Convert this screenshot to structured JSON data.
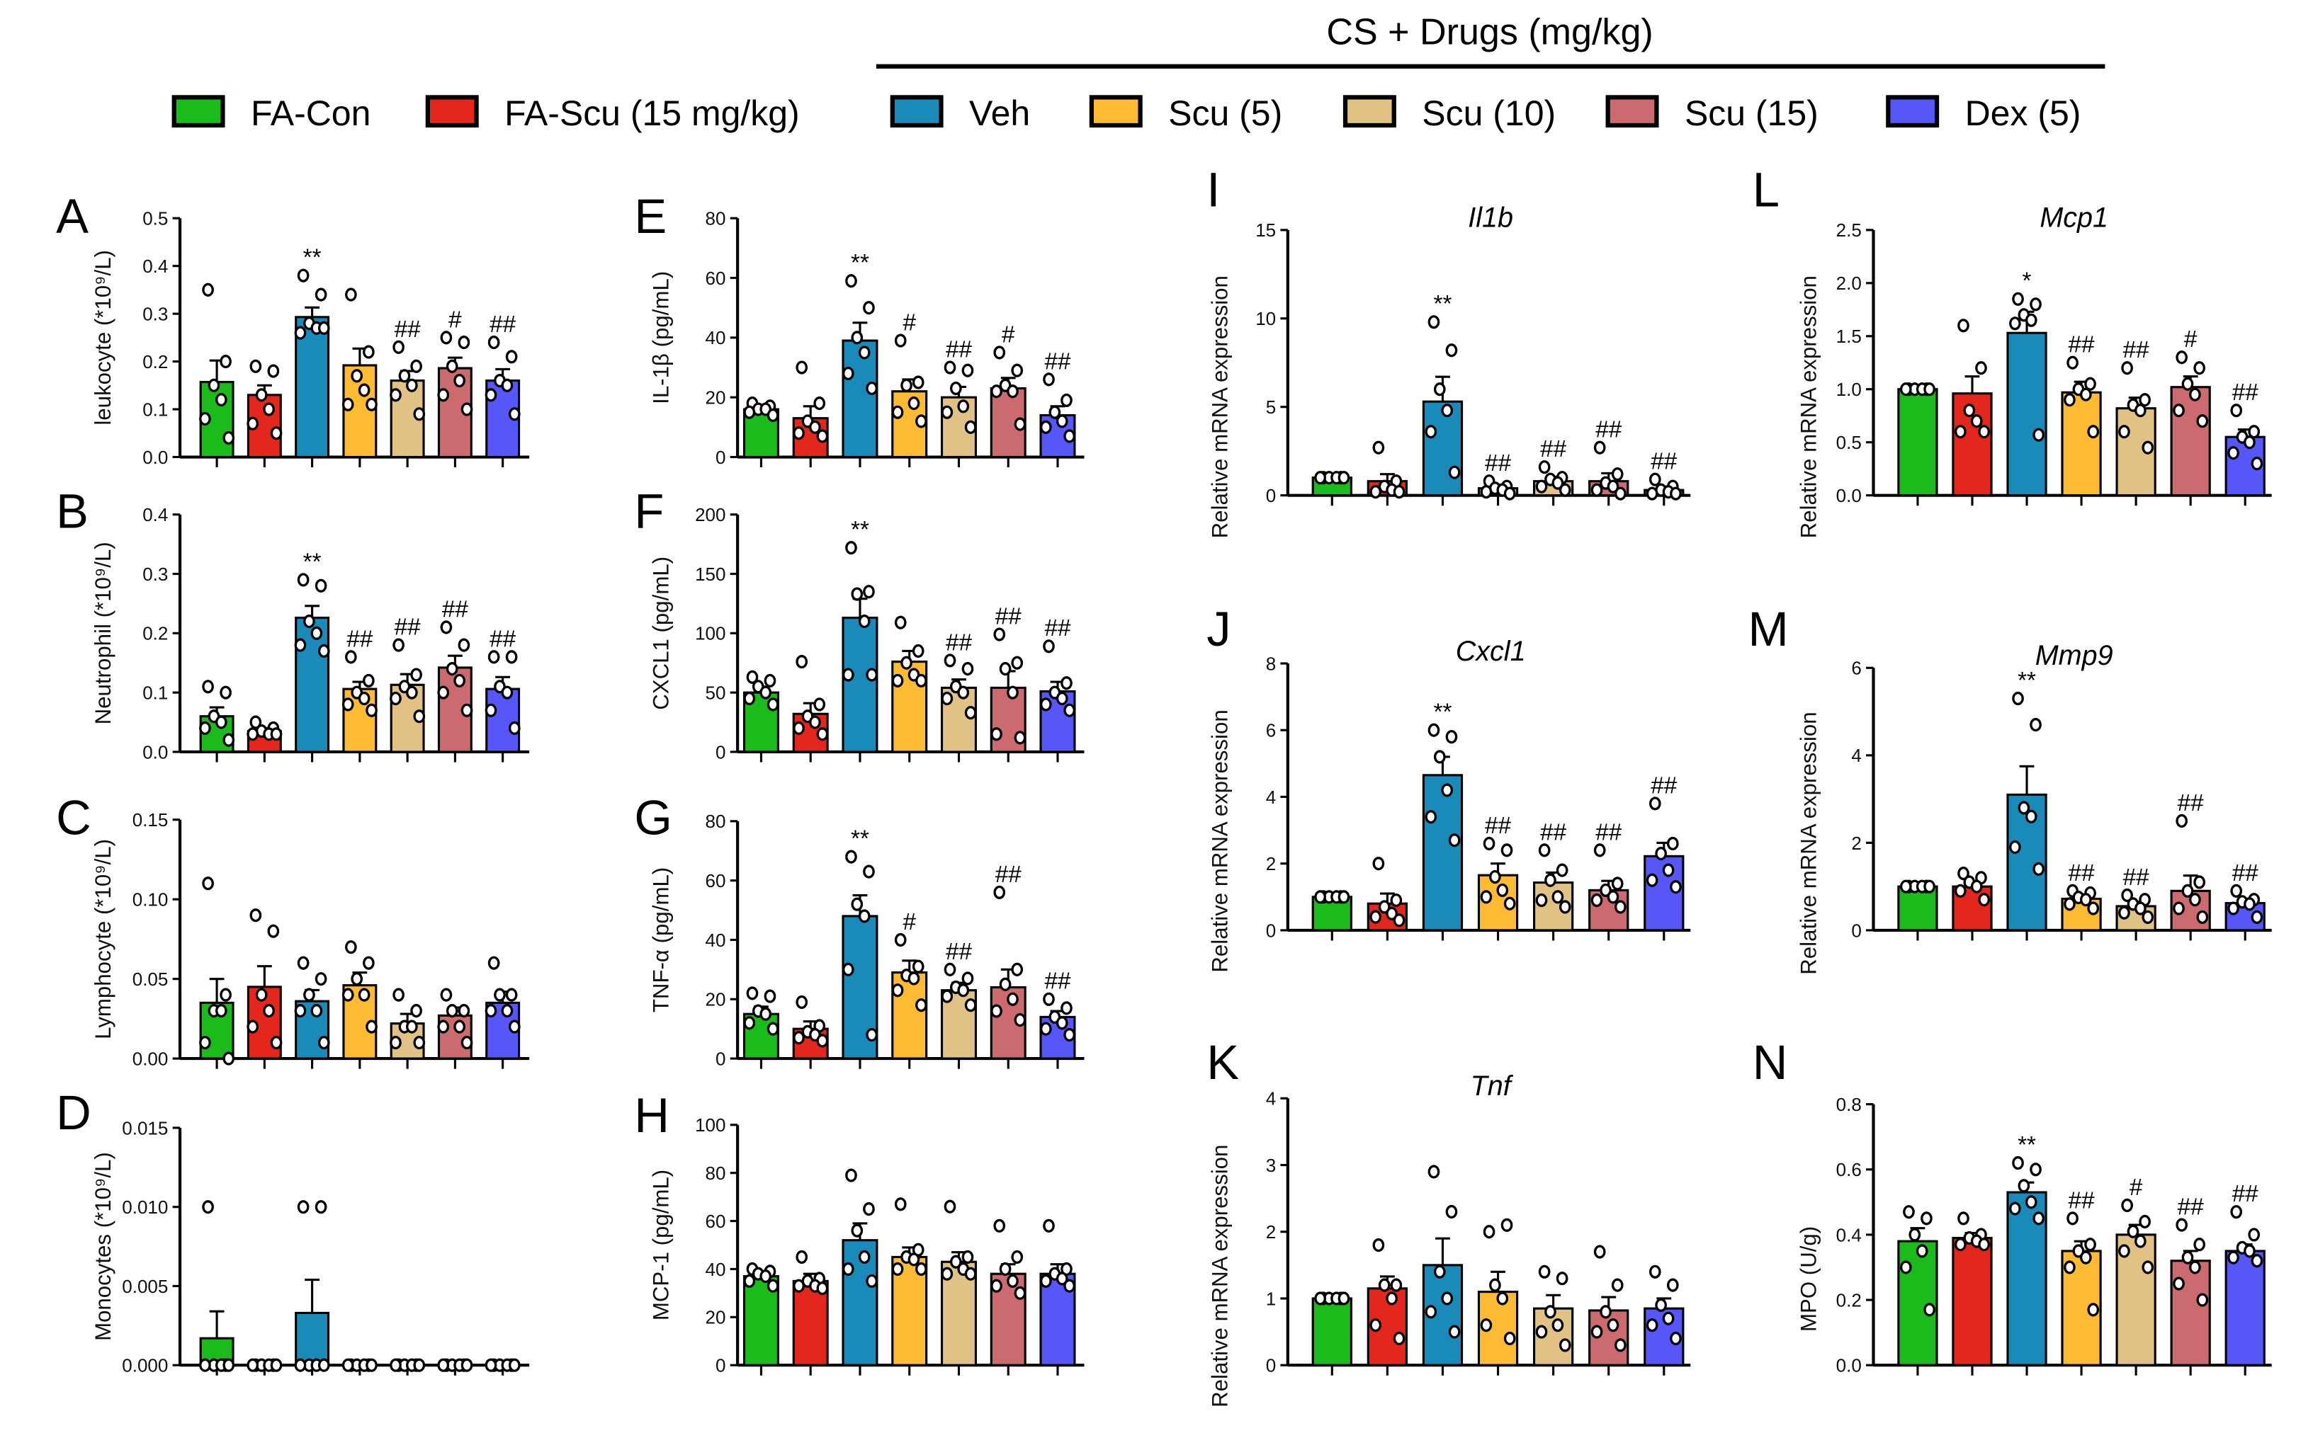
{
  "header": {
    "group_label": "CS + Drugs (mg/kg)"
  },
  "legend": [
    {
      "label": "FA-Con",
      "color": "#1cbb1c"
    },
    {
      "label": "FA-Scu (15 mg/kg)",
      "color": "#e3271d"
    },
    {
      "label": "Veh",
      "color": "#1a8bb9"
    },
    {
      "label": "Scu (5)",
      "color": "#fdbb33"
    },
    {
      "label": "Scu (10)",
      "color": "#e2c185"
    },
    {
      "label": "Scu (15)",
      "color": "#cb6a6f"
    },
    {
      "label": "Dex (5)",
      "color": "#5757f8"
    }
  ],
  "chart_data": [
    {
      "type": "bar",
      "panel": "A",
      "title": "",
      "ylabel": "leukocyte (*10⁹/L)",
      "ylim": [
        0,
        0.5
      ],
      "yticks": [
        "0.0",
        "0.1",
        "0.2",
        "0.3",
        "0.4",
        "0.5"
      ],
      "means": [
        0.157,
        0.13,
        0.293,
        0.192,
        0.16,
        0.186,
        0.16
      ],
      "sem": [
        0.045,
        0.02,
        0.02,
        0.035,
        0.02,
        0.022,
        0.024
      ],
      "points": [
        [
          0.35,
          0.2,
          0.15,
          0.12,
          0.08,
          0.04
        ],
        [
          0.19,
          0.18,
          0.13,
          0.1,
          0.07,
          0.05
        ],
        [
          0.38,
          0.34,
          0.28,
          0.27,
          0.26,
          0.27
        ],
        [
          0.34,
          0.22,
          0.17,
          0.14,
          0.11,
          0.11
        ],
        [
          0.23,
          0.19,
          0.17,
          0.15,
          0.13,
          0.09
        ],
        [
          0.25,
          0.24,
          0.19,
          0.16,
          0.13,
          0.1
        ],
        [
          0.24,
          0.21,
          0.16,
          0.15,
          0.13,
          0.09
        ]
      ],
      "sig": [
        "",
        "",
        "**",
        "",
        "##",
        "#",
        "##"
      ]
    },
    {
      "type": "bar",
      "panel": "B",
      "title": "",
      "ylabel": "Neutrophil  (*10⁹/L)",
      "ylim": [
        0,
        0.4
      ],
      "yticks": [
        "0.0",
        "0.1",
        "0.2",
        "0.3",
        "0.4"
      ],
      "means": [
        0.06,
        0.035,
        0.226,
        0.106,
        0.113,
        0.142,
        0.106
      ],
      "sem": [
        0.015,
        0.005,
        0.02,
        0.012,
        0.018,
        0.02,
        0.02
      ],
      "points": [
        [
          0.11,
          0.1,
          0.06,
          0.05,
          0.04,
          0.02
        ],
        [
          0.05,
          0.04,
          0.035,
          0.03,
          0.03,
          0.03
        ],
        [
          0.29,
          0.28,
          0.22,
          0.2,
          0.18,
          0.17
        ],
        [
          0.16,
          0.12,
          0.1,
          0.09,
          0.08,
          0.07
        ],
        [
          0.18,
          0.13,
          0.11,
          0.1,
          0.09,
          0.06
        ],
        [
          0.21,
          0.18,
          0.14,
          0.12,
          0.1,
          0.07
        ],
        [
          0.16,
          0.16,
          0.11,
          0.1,
          0.07,
          0.04
        ]
      ],
      "sig": [
        "",
        "",
        "**",
        "##",
        "##",
        "##",
        "##"
      ]
    },
    {
      "type": "bar",
      "panel": "C",
      "title": "",
      "ylabel": "Lymphocyte  (*10⁹/L)",
      "ylim": [
        0,
        0.15
      ],
      "yticks": [
        "0.00",
        "0.05",
        "0.10",
        "0.15"
      ],
      "means": [
        0.035,
        0.045,
        0.036,
        0.046,
        0.022,
        0.027,
        0.035
      ],
      "sem": [
        0.015,
        0.013,
        0.007,
        0.008,
        0.006,
        0.005,
        0.007
      ],
      "points": [
        [
          0.11,
          0.04,
          0.03,
          0.03,
          0.01,
          0.0
        ],
        [
          0.09,
          0.08,
          0.04,
          0.03,
          0.02,
          0.01
        ],
        [
          0.06,
          0.05,
          0.04,
          0.03,
          0.03,
          0.01
        ],
        [
          0.07,
          0.06,
          0.05,
          0.04,
          0.04,
          0.02
        ],
        [
          0.04,
          0.03,
          0.02,
          0.02,
          0.01,
          0.01
        ],
        [
          0.04,
          0.03,
          0.03,
          0.02,
          0.02,
          0.01
        ],
        [
          0.06,
          0.04,
          0.04,
          0.03,
          0.03,
          0.02
        ]
      ],
      "sig": [
        "",
        "",
        "",
        "",
        "",
        "",
        ""
      ]
    },
    {
      "type": "bar",
      "panel": "D",
      "title": "",
      "ylabel": "Monocytes  (*10⁹/L)",
      "ylim": [
        0,
        0.015
      ],
      "yticks": [
        "0.000",
        "0.005",
        "0.010",
        "0.015"
      ],
      "means": [
        0.0017,
        0,
        0.0033,
        0,
        0,
        0,
        0
      ],
      "sem": [
        0.0017,
        0,
        0.0021,
        0,
        0,
        0,
        0
      ],
      "points": [
        [
          0.01,
          0,
          0,
          0,
          0,
          0
        ],
        [
          0,
          0,
          0,
          0,
          0,
          0
        ],
        [
          0.01,
          0.01,
          0,
          0,
          0,
          0
        ],
        [
          0,
          0,
          0,
          0,
          0,
          0
        ],
        [
          0,
          0,
          0,
          0,
          0,
          0
        ],
        [
          0,
          0,
          0,
          0,
          0,
          0
        ],
        [
          0,
          0,
          0,
          0,
          0,
          0
        ]
      ],
      "sig": [
        "",
        "",
        "",
        "",
        "",
        "",
        ""
      ]
    },
    {
      "type": "bar",
      "panel": "E",
      "title": "",
      "ylabel": "IL-1β (pg/mL)",
      "ylim": [
        0,
        80
      ],
      "yticks": [
        "0",
        "20",
        "40",
        "60",
        "80"
      ],
      "means": [
        16,
        13,
        39,
        22,
        20,
        23,
        14
      ],
      "sem": [
        1,
        4,
        6,
        4,
        3.5,
        3.5,
        3
      ],
      "points": [
        [
          18,
          17,
          16,
          16,
          15,
          14
        ],
        [
          30,
          18,
          12,
          10,
          8,
          7
        ],
        [
          59,
          50,
          40,
          35,
          28,
          23
        ],
        [
          39,
          25,
          24,
          18,
          15,
          12
        ],
        [
          30,
          29,
          23,
          17,
          15,
          10
        ],
        [
          35,
          29,
          24,
          22,
          22,
          11
        ],
        [
          26,
          19,
          15,
          12,
          10,
          7
        ]
      ],
      "sig": [
        "",
        "",
        "**",
        "#",
        "##",
        "#",
        "##"
      ]
    },
    {
      "type": "bar",
      "panel": "F",
      "title": "",
      "ylabel": "CXCL1 (pg/mL)",
      "ylim": [
        0,
        200
      ],
      "yticks": [
        "0",
        "50",
        "100",
        "150",
        "200"
      ],
      "means": [
        50,
        32,
        113,
        76,
        54,
        54,
        51
      ],
      "sem": [
        5,
        9,
        16,
        9,
        7,
        14,
        8
      ],
      "points": [
        [
          63,
          60,
          55,
          50,
          45,
          40
        ],
        [
          76,
          40,
          30,
          25,
          20,
          15
        ],
        [
          172,
          135,
          133,
          110,
          65,
          65
        ],
        [
          109,
          85,
          75,
          65,
          60,
          60
        ],
        [
          77,
          70,
          55,
          50,
          45,
          33
        ],
        [
          99,
          75,
          70,
          50,
          15,
          12
        ],
        [
          89,
          58,
          50,
          45,
          40,
          35
        ]
      ],
      "sig": [
        "",
        "",
        "**",
        "",
        "##",
        "##",
        "##"
      ]
    },
    {
      "type": "bar",
      "panel": "G",
      "title": "",
      "ylabel": "TNF-α (pg/mL)",
      "ylim": [
        0,
        80
      ],
      "yticks": [
        "0",
        "20",
        "40",
        "60",
        "80"
      ],
      "means": [
        15,
        10,
        48,
        29,
        23,
        24,
        14
      ],
      "sem": [
        2.5,
        2.5,
        7,
        4,
        2.5,
        6,
        2
      ],
      "points": [
        [
          22,
          21,
          16,
          15,
          12,
          10
        ],
        [
          19,
          11,
          9,
          8,
          7,
          6
        ],
        [
          68,
          63,
          52,
          48,
          30,
          8
        ],
        [
          40,
          31,
          28,
          27,
          23,
          18
        ],
        [
          30,
          27,
          24,
          23,
          21,
          18
        ],
        [
          56,
          30,
          25,
          20,
          16,
          13
        ],
        [
          20,
          17,
          14,
          12,
          10,
          8
        ]
      ],
      "sig": [
        "",
        "",
        "**",
        "#",
        "##",
        "##",
        "##"
      ]
    },
    {
      "type": "bar",
      "panel": "H",
      "title": "",
      "ylabel": "MCP-1 (pg/mL)",
      "ylim": [
        0,
        100
      ],
      "yticks": [
        "0",
        "20",
        "40",
        "60",
        "80",
        "100"
      ],
      "means": [
        37,
        35,
        52,
        45,
        43,
        38,
        38
      ],
      "sem": [
        2,
        3,
        7,
        4,
        4,
        4,
        4
      ],
      "points": [
        [
          40,
          39,
          38,
          37,
          35,
          33
        ],
        [
          45,
          36,
          35,
          33,
          33,
          32
        ],
        [
          79,
          65,
          56,
          45,
          40,
          35
        ],
        [
          67,
          48,
          45,
          44,
          40,
          40
        ],
        [
          66,
          45,
          43,
          40,
          38,
          38
        ],
        [
          58,
          45,
          40,
          35,
          33,
          30
        ],
        [
          58,
          40,
          38,
          36,
          35,
          33
        ]
      ],
      "sig": [
        "",
        "",
        "",
        "",
        "",
        "",
        ""
      ]
    },
    {
      "type": "bar",
      "panel": "I",
      "title": "Il1b",
      "ylabel": "Relative mRNA expression",
      "ylim": [
        0,
        15
      ],
      "yticks": [
        "0",
        "5",
        "10",
        "15"
      ],
      "means": [
        1,
        0.8,
        5.3,
        0.4,
        0.8,
        0.8,
        0.3
      ],
      "sem": [
        0.05,
        0.4,
        1.4,
        0.2,
        0.25,
        0.45,
        0.2
      ],
      "points": [
        [
          1,
          1,
          1,
          1,
          1,
          1
        ],
        [
          2.7,
          0.8,
          0.5,
          0.3,
          0.2,
          0.2
        ],
        [
          9.8,
          8.2,
          6,
          4.8,
          3.6,
          1.3
        ],
        [
          0.8,
          0.5,
          0.4,
          0.3,
          0.2,
          0.1
        ],
        [
          1.6,
          1,
          0.9,
          0.7,
          0.5,
          0.3
        ],
        [
          2.7,
          1.2,
          0.7,
          0.5,
          0.3,
          0.1
        ],
        [
          0.9,
          0.5,
          0.3,
          0.2,
          0.1,
          0.1
        ]
      ],
      "sig": [
        "",
        "",
        "**",
        "##",
        "##",
        "##",
        "##"
      ]
    },
    {
      "type": "bar",
      "panel": "J",
      "title": "Cxcl1",
      "ylabel": "Relative mRNA expression",
      "ylim": [
        0,
        8
      ],
      "yticks": [
        "0",
        "2",
        "4",
        "6",
        "8"
      ],
      "means": [
        1,
        0.8,
        4.65,
        1.65,
        1.43,
        1.2,
        2.22
      ],
      "sem": [
        0.03,
        0.3,
        0.55,
        0.35,
        0.3,
        0.28,
        0.4
      ],
      "points": [
        [
          1,
          1,
          1,
          1,
          1,
          1
        ],
        [
          2,
          0.9,
          0.7,
          0.5,
          0.4,
          0.3
        ],
        [
          6,
          5.8,
          5.2,
          4.2,
          3.4,
          2.7
        ],
        [
          2.6,
          2.4,
          1.6,
          1.2,
          1,
          0.8
        ],
        [
          2.4,
          1.8,
          1.5,
          1,
          0.9,
          0.7
        ],
        [
          2.4,
          1.4,
          1.2,
          1,
          0.9,
          0.7
        ],
        [
          3.8,
          2.6,
          2.3,
          1.8,
          1.5,
          1.3
        ]
      ],
      "sig": [
        "",
        "",
        "**",
        "##",
        "##",
        "##",
        "##"
      ]
    },
    {
      "type": "bar",
      "panel": "K",
      "title": "Tnf",
      "ylabel": "Relative mRNA expression",
      "ylim": [
        0,
        4
      ],
      "yticks": [
        "0",
        "1",
        "2",
        "3",
        "4"
      ],
      "means": [
        1,
        1.15,
        1.5,
        1.1,
        0.85,
        0.82,
        0.85
      ],
      "sem": [
        0.02,
        0.18,
        0.4,
        0.3,
        0.2,
        0.2,
        0.15
      ],
      "points": [
        [
          1,
          1,
          1,
          1,
          1,
          1
        ],
        [
          1.8,
          1.2,
          1.2,
          1,
          0.6,
          0.4
        ],
        [
          2.9,
          2.3,
          1.4,
          1,
          0.8,
          0.5
        ],
        [
          2,
          2.1,
          1.2,
          1,
          0.6,
          0.4
        ],
        [
          1.4,
          1.3,
          0.8,
          0.6,
          0.5,
          0.3
        ],
        [
          1.7,
          1.2,
          0.8,
          0.6,
          0.5,
          0.3
        ],
        [
          1.4,
          1.2,
          0.9,
          0.7,
          0.6,
          0.4
        ]
      ],
      "sig": [
        "",
        "",
        "",
        "",
        "",
        "",
        ""
      ]
    },
    {
      "type": "bar",
      "panel": "L",
      "title": "Mcp1",
      "ylabel": "Relative mRNA expression",
      "ylim": [
        0,
        2.5
      ],
      "yticks": [
        "0.0",
        "0.5",
        "1.0",
        "1.5",
        "2.0",
        "2.5"
      ],
      "means": [
        1,
        0.96,
        1.53,
        0.97,
        0.82,
        1.02,
        0.55
      ],
      "sem": [
        0.01,
        0.16,
        0.2,
        0.1,
        0.1,
        0.1,
        0.07
      ],
      "points": [
        [
          1,
          1,
          1,
          1,
          1,
          1
        ],
        [
          1.6,
          1.2,
          0.8,
          0.7,
          0.6,
          0.6
        ],
        [
          1.85,
          1.8,
          1.7,
          1.65,
          1.62,
          0.57
        ],
        [
          1.25,
          1.05,
          1,
          0.95,
          0.9,
          0.6
        ],
        [
          1.2,
          0.9,
          0.85,
          0.8,
          0.6,
          0.45
        ],
        [
          1.3,
          1.2,
          1.05,
          0.95,
          0.8,
          0.7
        ],
        [
          0.8,
          0.6,
          0.55,
          0.5,
          0.4,
          0.3
        ]
      ],
      "sig": [
        "",
        "",
        "*",
        "##",
        "##",
        "#",
        "##"
      ]
    },
    {
      "type": "bar",
      "panel": "M",
      "title": "Mmp9",
      "ylabel": "Relative mRNA expression",
      "ylim": [
        0,
        6
      ],
      "yticks": [
        "0",
        "2",
        "4",
        "6"
      ],
      "means": [
        1,
        1,
        3.1,
        0.72,
        0.55,
        0.9,
        0.62
      ],
      "sem": [
        0.02,
        0.12,
        0.65,
        0.1,
        0.1,
        0.35,
        0.1
      ],
      "points": [
        [
          1,
          1,
          1,
          1,
          1,
          1
        ],
        [
          1.3,
          1.2,
          1.1,
          1,
          0.9,
          0.7
        ],
        [
          5.3,
          4.7,
          2.8,
          2.6,
          1.9,
          1.4
        ],
        [
          0.9,
          0.85,
          0.75,
          0.7,
          0.6,
          0.5
        ],
        [
          0.8,
          0.7,
          0.6,
          0.5,
          0.4,
          0.3
        ],
        [
          2.5,
          1.1,
          0.9,
          0.7,
          0.5,
          0.3
        ],
        [
          0.9,
          0.7,
          0.65,
          0.6,
          0.5,
          0.3
        ]
      ],
      "sig": [
        "",
        "",
        "**",
        "##",
        "##",
        "##",
        "##"
      ]
    },
    {
      "type": "bar",
      "panel": "N",
      "title": "",
      "ylabel": "MPO (U/g)",
      "ylim": [
        0,
        0.8
      ],
      "yticks": [
        "0.0",
        "0.2",
        "0.4",
        "0.6",
        "0.8"
      ],
      "means": [
        0.38,
        0.39,
        0.53,
        0.35,
        0.4,
        0.32,
        0.35
      ],
      "sem": [
        0.04,
        0.015,
        0.03,
        0.03,
        0.03,
        0.03,
        0.02
      ],
      "points": [
        [
          0.47,
          0.45,
          0.4,
          0.35,
          0.3,
          0.17
        ],
        [
          0.45,
          0.4,
          0.39,
          0.38,
          0.37,
          0.37
        ],
        [
          0.62,
          0.6,
          0.55,
          0.5,
          0.48,
          0.45
        ],
        [
          0.45,
          0.37,
          0.35,
          0.33,
          0.3,
          0.17
        ],
        [
          0.49,
          0.44,
          0.41,
          0.38,
          0.35,
          0.3
        ],
        [
          0.43,
          0.37,
          0.33,
          0.3,
          0.25,
          0.2
        ],
        [
          0.47,
          0.4,
          0.36,
          0.35,
          0.33,
          0.32
        ]
      ],
      "sig": [
        "",
        "",
        "**",
        "##",
        "#",
        "##",
        "##"
      ]
    }
  ]
}
